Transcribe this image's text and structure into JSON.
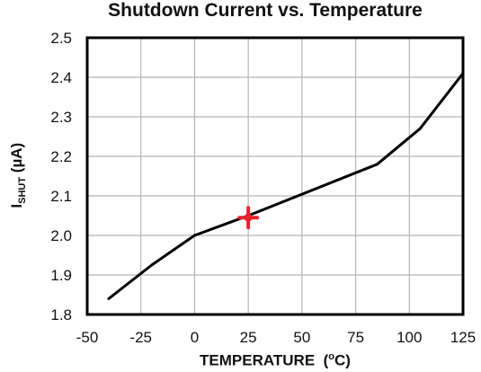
{
  "chart_data": {
    "type": "line",
    "title": "Shutdown Current vs. Temperature",
    "ylabel": {
      "main": "I",
      "sub": "SHUT",
      "unit": " (µA)"
    },
    "xlabel": {
      "main": "TEMPERATURE  (",
      "sup": "o",
      "unit": "C)"
    },
    "xlim": [
      -50,
      125
    ],
    "ylim": [
      1.8,
      2.5
    ],
    "xticks": [
      "-50",
      "-25",
      "0",
      "25",
      "50",
      "75",
      "100",
      "125"
    ],
    "yticks": [
      "1.8",
      "1.9",
      "2.0",
      "2.1",
      "2.2",
      "2.3",
      "2.4",
      "2.5"
    ],
    "grid": true,
    "series": [
      {
        "color": "#000000",
        "x": [
          -40,
          -20,
          0,
          25,
          85,
          105,
          125
        ],
        "y": [
          1.84,
          1.925,
          2.0,
          2.05,
          2.18,
          2.27,
          2.41
        ]
      }
    ],
    "marker": {
      "x": 25,
      "y": 2.045,
      "color": "#e8212b"
    }
  }
}
